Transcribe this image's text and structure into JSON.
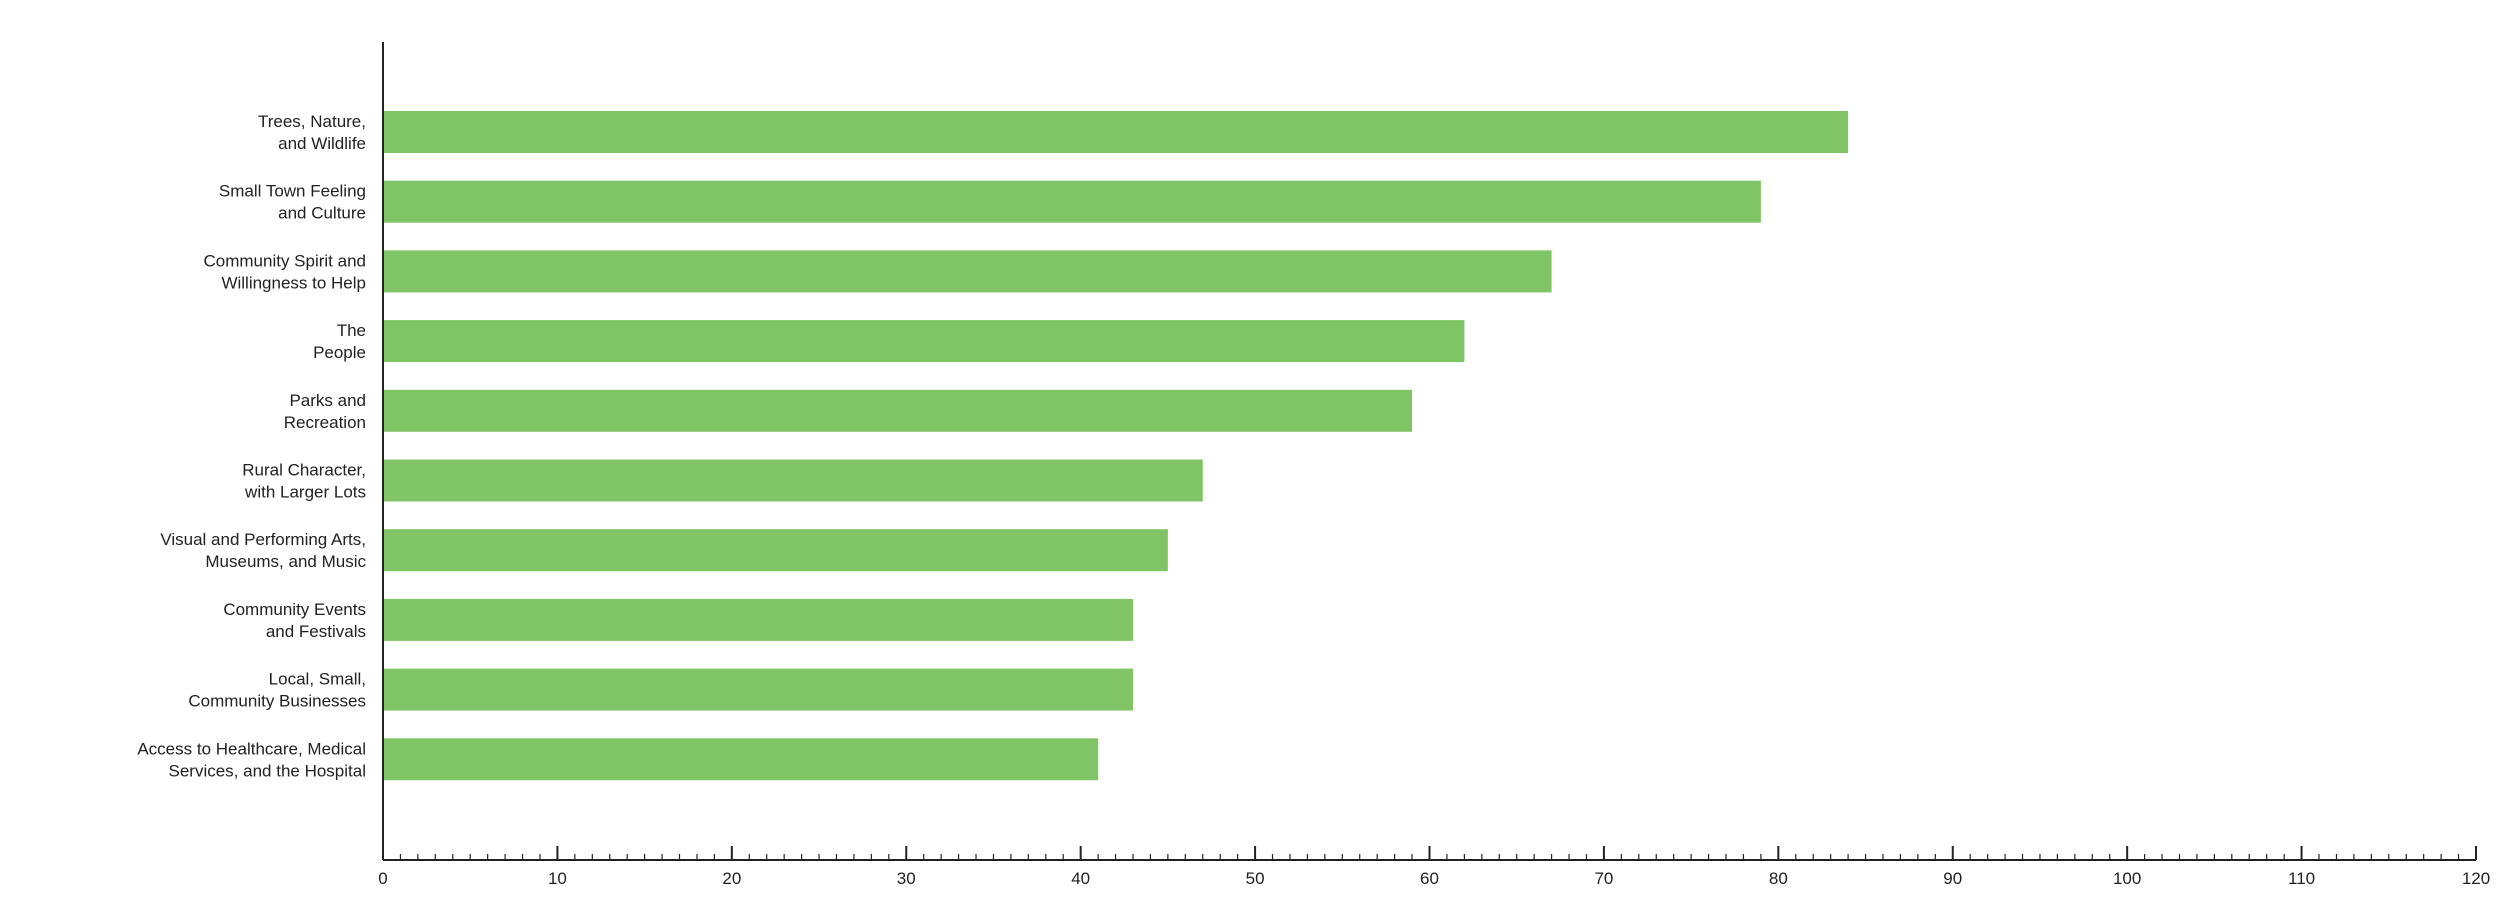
{
  "chart_data": {
    "type": "bar",
    "orientation": "horizontal",
    "categories": [
      [
        "Trees, Nature,",
        "and Wildlife"
      ],
      [
        "Small Town Feeling",
        "and Culture"
      ],
      [
        "Community Spirit and",
        "Willingness to Help"
      ],
      [
        "The",
        "People"
      ],
      [
        "Parks and",
        "Recreation"
      ],
      [
        "Rural Character,",
        "with Larger Lots"
      ],
      [
        "Visual and Performing Arts,",
        "Museums, and Music"
      ],
      [
        "Community Events",
        "and Festivals"
      ],
      [
        "Local, Small,",
        "Community Businesses"
      ],
      [
        "Access to Healthcare, Medical",
        "Services, and the Hospital"
      ]
    ],
    "values": [
      84,
      79,
      67,
      62,
      59,
      47,
      45,
      43,
      43,
      41
    ],
    "xlim": [
      0,
      120
    ],
    "xticks": [
      0,
      10,
      20,
      30,
      40,
      50,
      60,
      70,
      80,
      90,
      100,
      110,
      120
    ],
    "minor_tick_step": 1,
    "title": "",
    "xlabel": "",
    "ylabel": "",
    "grid": false,
    "legend": "none",
    "colors": {
      "bar": "#80c565",
      "axis": "#222222",
      "text": "#222222"
    }
  }
}
